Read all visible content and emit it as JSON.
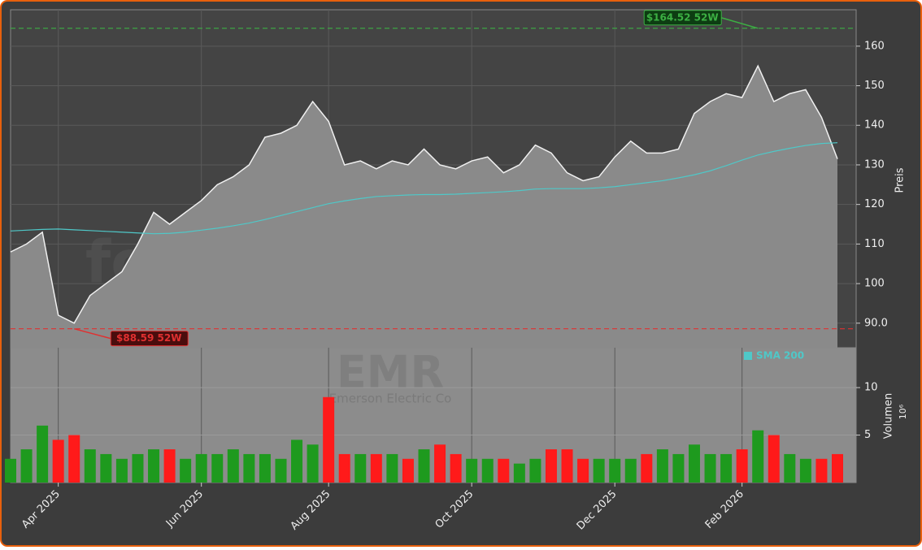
{
  "chart_data": [
    {
      "type": "area",
      "watermark": "forexsignale.trade",
      "symbol": "EMR",
      "company": "Emerson Electric Co",
      "y_label": "Preis",
      "categories": [
        null,
        null,
        null,
        "Apr 2025",
        null,
        null,
        null,
        null,
        null,
        null,
        null,
        null,
        "Jun 2025",
        null,
        null,
        null,
        null,
        null,
        null,
        null,
        "Aug 2025",
        null,
        null,
        null,
        null,
        null,
        null,
        null,
        null,
        "Oct 2025",
        null,
        null,
        null,
        null,
        null,
        null,
        null,
        null,
        "Dec 2025",
        null,
        null,
        null,
        null,
        null,
        null,
        null,
        "Feb 2026",
        null,
        null,
        null,
        null,
        null,
        null
      ],
      "series": [
        {
          "color": "#f0f0f0",
          "fill": "#8a8a8a",
          "values": [
            108,
            110,
            113,
            92,
            90,
            97,
            100,
            103,
            110,
            118,
            115,
            118,
            121,
            125,
            127,
            130,
            137,
            138,
            140,
            146,
            141,
            130,
            131,
            129,
            131,
            130,
            134,
            130,
            129,
            131,
            132,
            128,
            130,
            135,
            133,
            128,
            126,
            127,
            132,
            136,
            133,
            133,
            134,
            143,
            146,
            148,
            147,
            155,
            146,
            148,
            149,
            142,
            131.5
          ]
        },
        {
          "name": "SMA 200",
          "color": "#4fc8c8",
          "values": [
            113.3,
            113.5,
            113.7,
            113.8,
            113.6,
            113.4,
            113.2,
            113.0,
            112.8,
            112.6,
            112.7,
            113.0,
            113.5,
            114.0,
            114.6,
            115.3,
            116.2,
            117.2,
            118.2,
            119.2,
            120.2,
            120.9,
            121.5,
            122.0,
            122.2,
            122.4,
            122.5,
            122.5,
            122.6,
            122.8,
            123.0,
            123.2,
            123.5,
            123.9,
            124.0,
            124.0,
            124.0,
            124.2,
            124.5,
            125.0,
            125.5,
            126.0,
            126.7,
            127.5,
            128.5,
            129.8,
            131.2,
            132.5,
            133.4,
            134.2,
            134.9,
            135.4,
            135.6
          ]
        }
      ],
      "high": {
        "value": 164.52,
        "label": "$164.52 52W",
        "color": "#3cb043"
      },
      "low": {
        "value": 88.59,
        "label": "$88.59 52W",
        "color": "#e03030"
      },
      "ylim": [
        83.8,
        169.2
      ],
      "yticks": [
        {
          "value": 90,
          "label": "90.0"
        },
        100,
        110,
        120,
        130,
        140,
        150,
        160
      ],
      "grid": true
    },
    {
      "type": "bar",
      "y_label": "Volumen",
      "y_unit": "10⁶",
      "up_color": "#1e9a1e",
      "down_color": "#ff1a1a",
      "values": [
        2.5,
        3.5,
        6,
        4.5,
        5,
        3.5,
        3,
        2.5,
        3,
        3.5,
        3.5,
        2.5,
        3,
        3,
        3.5,
        3,
        3,
        2.5,
        4.5,
        4,
        9,
        3,
        3,
        3,
        3,
        2.5,
        3.5,
        4,
        3,
        2.5,
        2.5,
        2.5,
        2,
        2.5,
        3.5,
        3.5,
        2.5,
        2.5,
        2.5,
        2.5,
        3,
        3.5,
        3,
        4,
        3,
        3,
        3.5,
        5.5,
        5,
        3,
        2.5,
        2.5,
        3
      ],
      "ylim": [
        0,
        14.2
      ],
      "yticks": [
        5,
        10
      ]
    }
  ]
}
